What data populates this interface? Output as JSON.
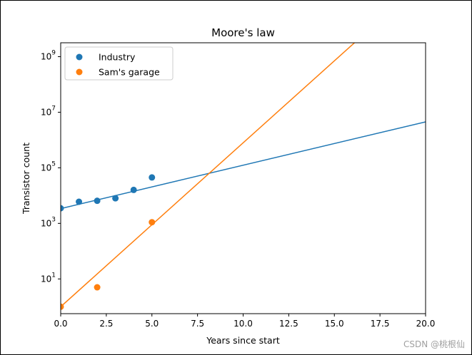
{
  "chart_data": {
    "type": "scatter",
    "title": "Moore's law",
    "xlabel": "Years since start",
    "ylabel": "Transistor count",
    "xlim": [
      0,
      20
    ],
    "ylim_log10": [
      -0.25,
      9.5
    ],
    "yscale": "log",
    "x_ticks": [
      "0.0",
      "2.5",
      "5.0",
      "7.5",
      "10.0",
      "12.5",
      "15.0",
      "17.5",
      "20.0"
    ],
    "x_tick_values": [
      0,
      2.5,
      5,
      7.5,
      10,
      12.5,
      15,
      17.5,
      20
    ],
    "y_ticks": [
      {
        "base": "10",
        "exp": "1",
        "value": 10
      },
      {
        "base": "10",
        "exp": "3",
        "value": 1000
      },
      {
        "base": "10",
        "exp": "5",
        "value": 100000
      },
      {
        "base": "10",
        "exp": "7",
        "value": 10000000
      },
      {
        "base": "10",
        "exp": "9",
        "value": 1000000000
      }
    ],
    "legend_position": "upper-left",
    "series": [
      {
        "name": "Industry",
        "color": "#1f77b4",
        "points": [
          {
            "x": 0,
            "y": 3500
          },
          {
            "x": 1,
            "y": 6000
          },
          {
            "x": 2,
            "y": 6500
          },
          {
            "x": 3,
            "y": 8000
          },
          {
            "x": 4,
            "y": 16000
          },
          {
            "x": 5,
            "y": 45000
          }
        ],
        "fit": [
          {
            "x": 0,
            "y": 3400
          },
          {
            "x": 20,
            "y": 4500000
          }
        ]
      },
      {
        "name": "Sam's garage",
        "color": "#ff7f0e",
        "points": [
          {
            "x": 0,
            "y": 1
          },
          {
            "x": 2,
            "y": 5
          },
          {
            "x": 5,
            "y": 1100
          }
        ],
        "fit": [
          {
            "x": 0,
            "y": 1
          },
          {
            "x": 20,
            "y": 630000000000.0
          }
        ]
      }
    ]
  },
  "watermark": "CSDN @桃根仙"
}
